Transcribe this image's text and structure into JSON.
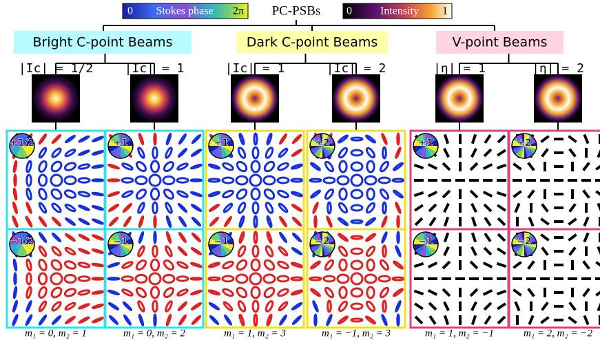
{
  "title": "PC-PSBs",
  "colorbars": [
    {
      "min": "0",
      "label": "Stokes phase",
      "max": "2π"
    },
    {
      "min": "0",
      "label": "Intensity",
      "max": "1"
    }
  ],
  "groups": [
    {
      "name": "Bright C-point Beams",
      "beams": [
        {
          "label": "|Ic| = 1/2",
          "panels": [
            {
              "charge": 0.5,
              "label": "+1/2"
            },
            {
              "charge": -0.5,
              "label": "−1/2"
            }
          ],
          "modes": "m₁ = 0, m₂ = 1"
        },
        {
          "label": "|Ic| = 1",
          "panels": [
            {
              "charge": 1,
              "label": "+1"
            },
            {
              "charge": -1,
              "label": "−1"
            }
          ],
          "modes": "m₁ = 0, m₂ = 2"
        }
      ]
    },
    {
      "name": "Dark C-point Beams",
      "beams": [
        {
          "label": "|Ic| = 1",
          "panels": [
            {
              "charge": 1,
              "label": "+1"
            },
            {
              "charge": -1,
              "label": "−1"
            }
          ],
          "modes": "m₁ = 1, m₂ = 3"
        },
        {
          "label": "|Ic| = 2",
          "panels": [
            {
              "charge": 2,
              "label": "+2"
            },
            {
              "charge": -2,
              "label": "−2"
            }
          ],
          "modes": "m₁ = −1, m₂ = 3"
        }
      ]
    },
    {
      "name": "V-point Beams",
      "beams": [
        {
          "label": "|η| = 1",
          "panels": [
            {
              "charge": 1,
              "label": "+1"
            },
            {
              "charge": -1,
              "label": "−1"
            }
          ],
          "modes": "m₁ = 1, m₂ = −1"
        },
        {
          "label": "|η| = 2",
          "panels": [
            {
              "charge": 2,
              "label": "+2"
            },
            {
              "charge": -2,
              "label": "−2"
            }
          ],
          "modes": "m₁ = 2, m₂ = −2"
        }
      ]
    }
  ]
}
